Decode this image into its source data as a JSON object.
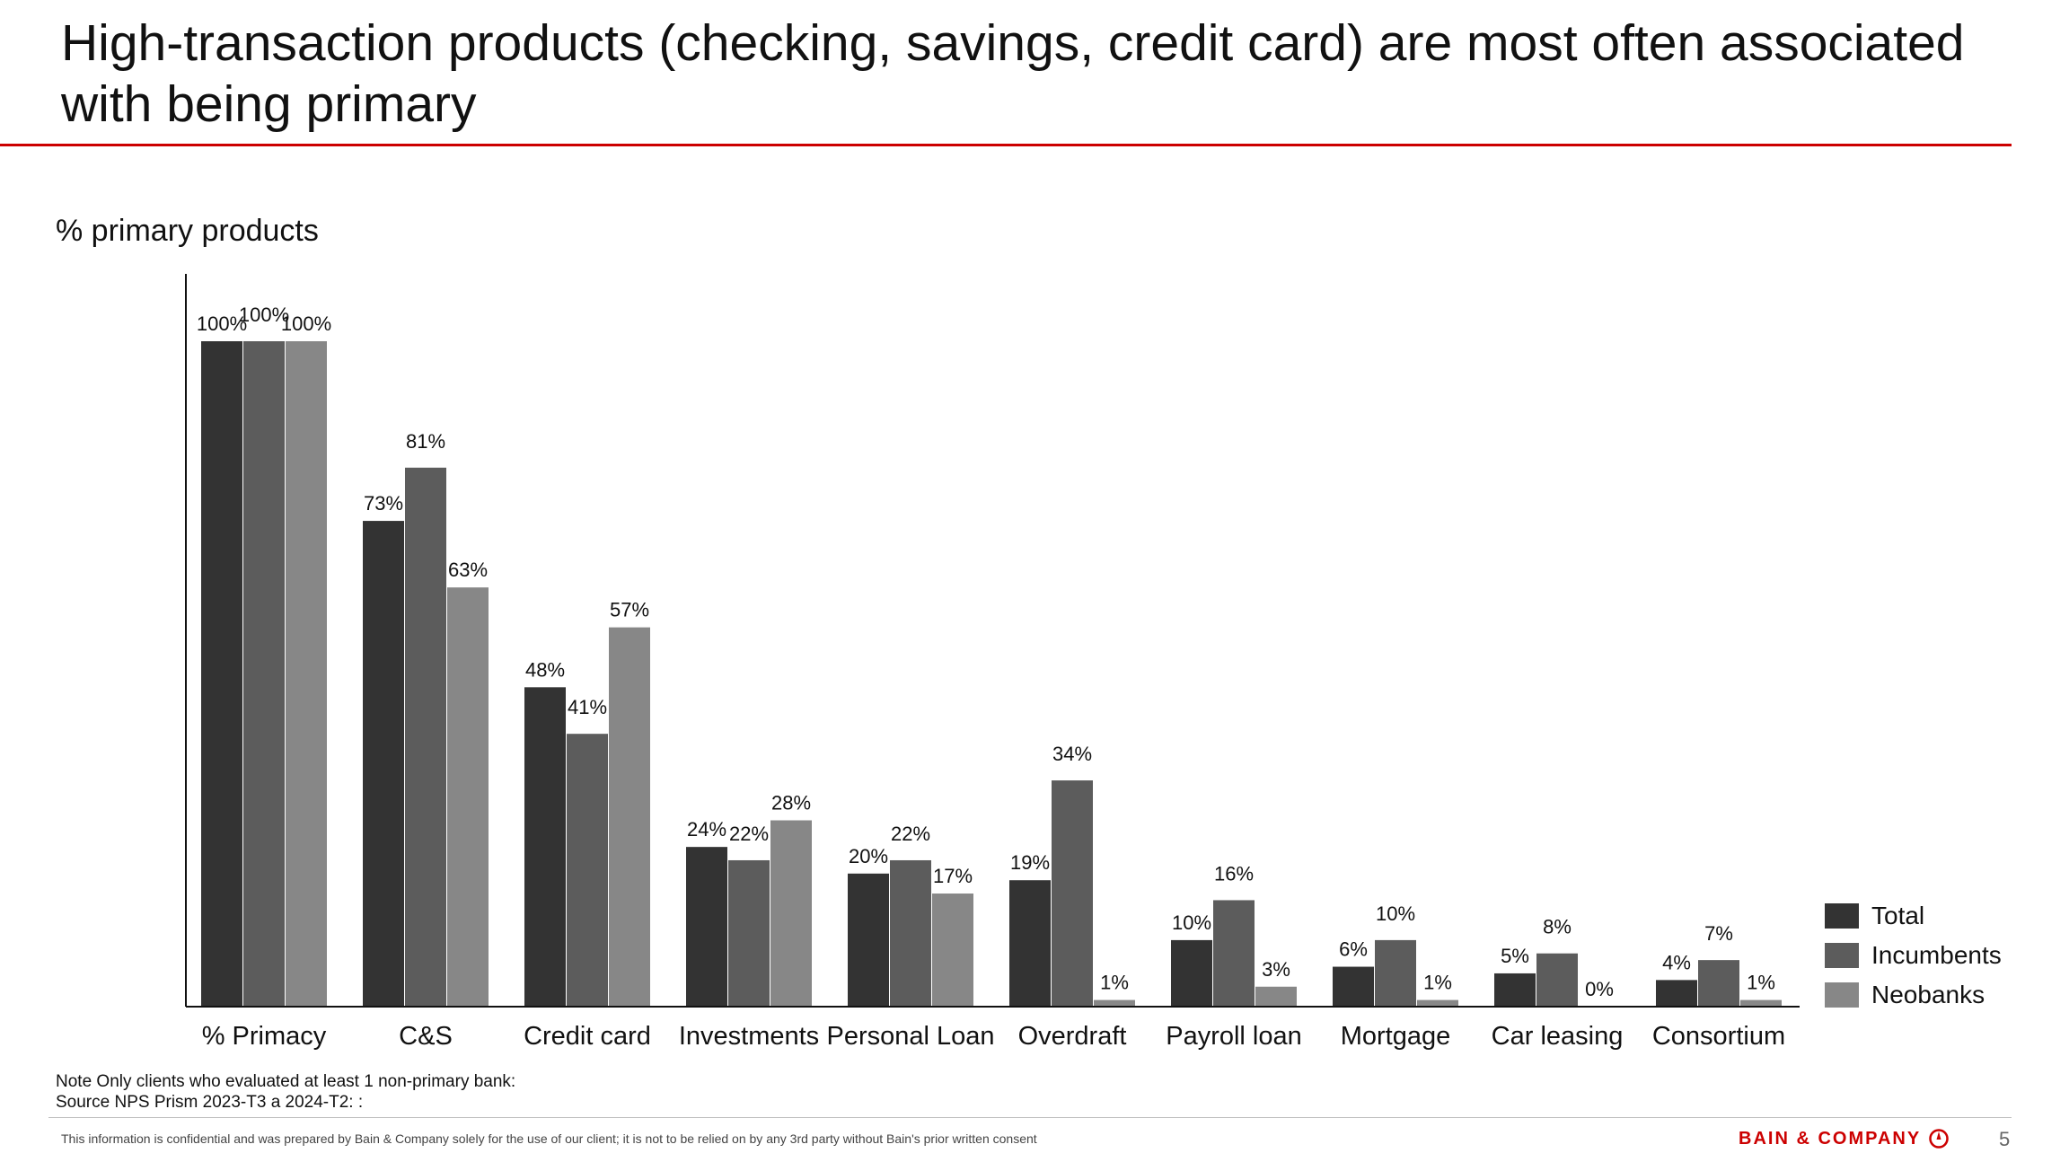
{
  "slide": {
    "title": "High-transaction products (checking, savings, credit card) are most often associated with being primary",
    "subtitle": "% primary products",
    "note": "Note Only clients who evaluated at least 1 non-primary bank:",
    "source": "Source NPS Prism 2023-T3 a 2024-T2: :",
    "footer": "This information is confidential and was prepared by Bain & Company solely for the use of our client; it is not to be relied on by any 3rd party without Bain's prior written consent",
    "brand": "BAIN & COMPANY",
    "page_number": "5"
  },
  "chart_data": {
    "type": "bar",
    "categories": [
      "% Primacy",
      "C&S",
      "Credit card",
      "Investments",
      "Personal Loan",
      "Overdraft",
      "Payroll loan",
      "Mortgage",
      "Car leasing",
      "Consortium"
    ],
    "series": [
      {
        "name": "Total",
        "color": "#333333",
        "values": [
          100,
          73,
          48,
          24,
          20,
          19,
          10,
          6,
          5,
          4
        ]
      },
      {
        "name": "Incumbents",
        "color": "#5c5c5c",
        "values": [
          100,
          81,
          41,
          22,
          22,
          34,
          16,
          10,
          8,
          7
        ]
      },
      {
        "name": "Neobanks",
        "color": "#878787",
        "values": [
          100,
          63,
          57,
          28,
          17,
          1,
          3,
          1,
          0,
          1
        ]
      }
    ],
    "value_suffix": "%",
    "ylim": [
      0,
      100
    ],
    "legend_position": "bottom-right",
    "grid": false
  }
}
